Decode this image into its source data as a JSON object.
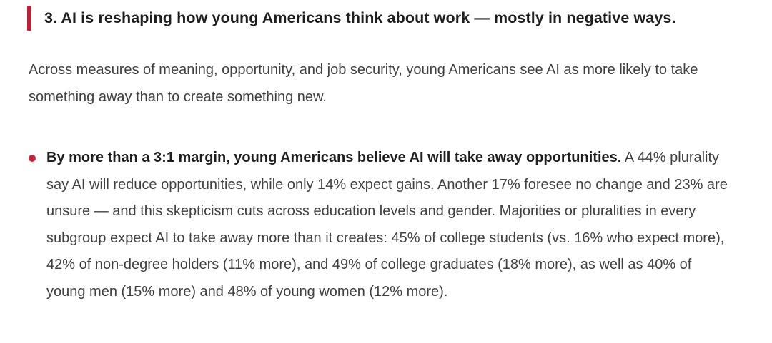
{
  "colors": {
    "accent": "#b5243a",
    "bullet": "#c0283c",
    "heading_text": "#1e1e1e",
    "body_text": "#404040"
  },
  "section": {
    "heading": "3. AI is reshaping how young Americans think about work — mostly in negative ways.",
    "intro": "Across measures of meaning, opportunity, and job security, young Americans see AI as more likely to take something away than to create something new.",
    "bullets": [
      {
        "lead": "By more than a 3:1 margin, young Americans believe AI will take away opportunities.",
        "body": "A 44% plurality say AI will reduce opportunities, while only 14% expect gains. Another 17% foresee no change and 23% are unsure — and this skepticism cuts across education levels and gender. Majorities or pluralities in every subgroup expect AI to take away more than it creates: 45% of college students (vs. 16% who expect more), 42% of non-degree holders (11% more), and 49% of college graduates (18% more), as well as 40% of young men (15% more) and 48% of young women (12% more)."
      }
    ]
  }
}
